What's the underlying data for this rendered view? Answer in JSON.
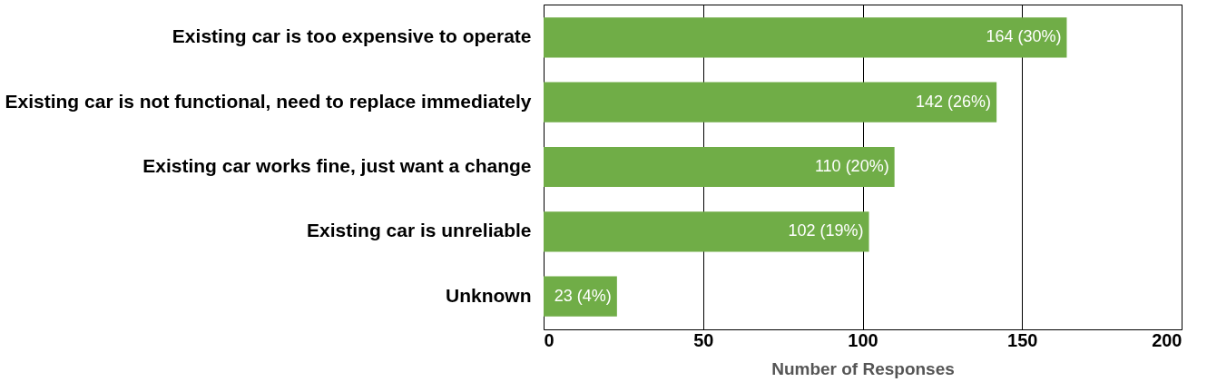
{
  "chart_data": {
    "type": "bar",
    "orientation": "horizontal",
    "xlabel": "Number of Responses",
    "categories": [
      "Existing car is too expensive to operate",
      "Existing car is not functional, need to replace immediately",
      "Existing car works fine, just want a change",
      "Existing car is unreliable",
      "Unknown"
    ],
    "values": [
      164,
      142,
      110,
      102,
      23
    ],
    "value_labels": [
      "164  (30%)",
      "142  (26%)",
      "110  (20%)",
      "102  (19%)",
      "23 (4%)"
    ],
    "color": "#70ad47",
    "xlim": [
      0,
      200
    ],
    "xticks": [
      0,
      50,
      100,
      150,
      200
    ],
    "grid": "x"
  }
}
